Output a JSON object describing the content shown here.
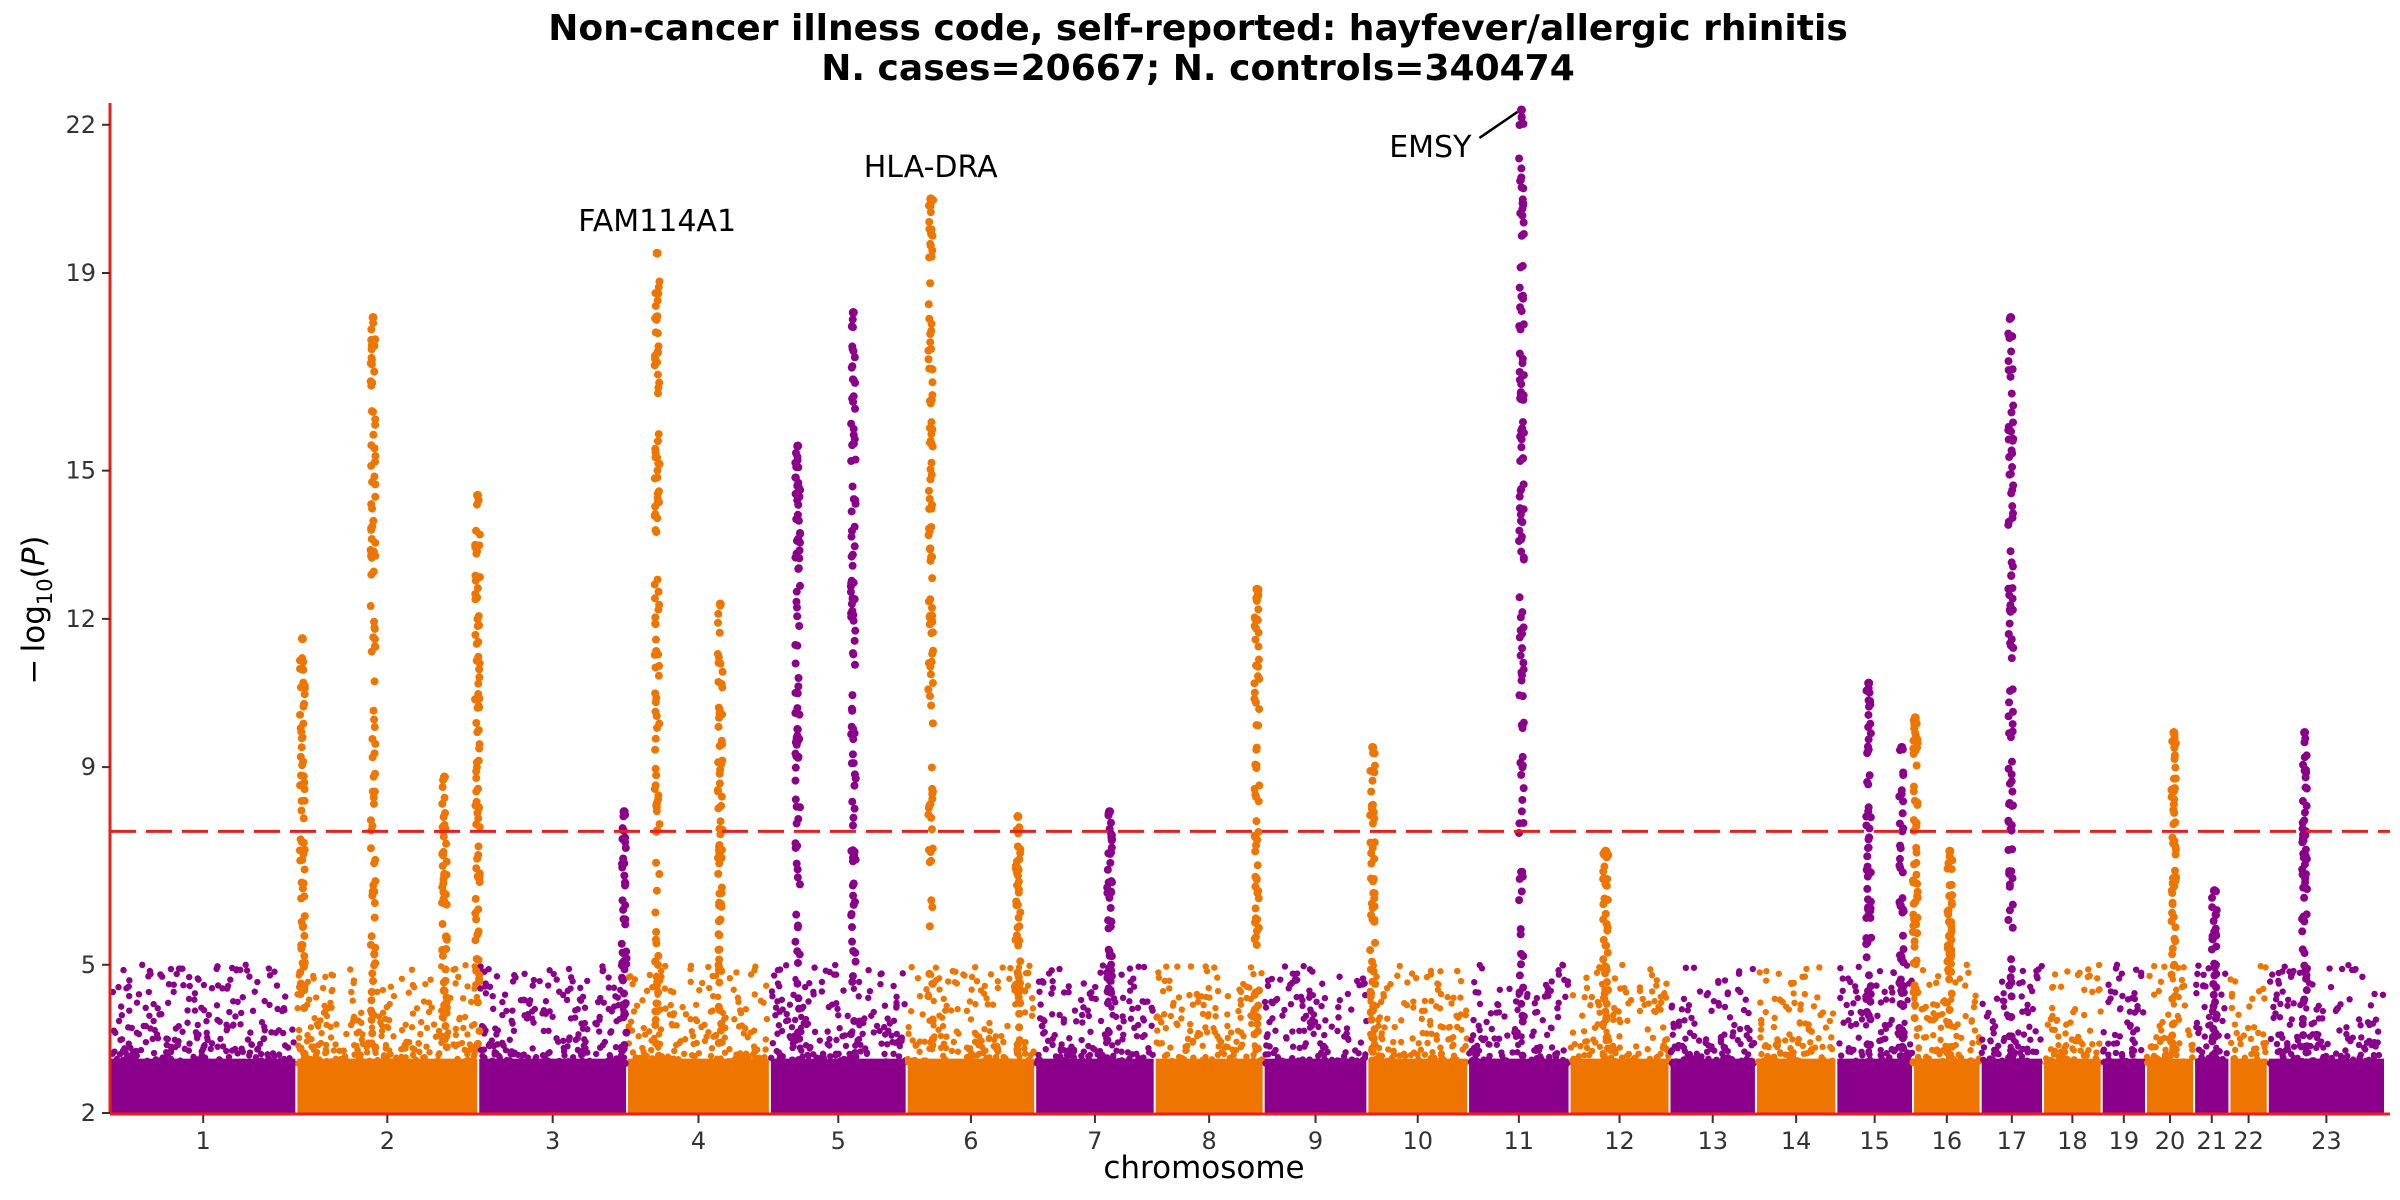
{
  "chart_data": {
    "type": "scatter",
    "subtype": "manhattan",
    "title": "Non-cancer illness code, self-reported: hayfever/allergic rhinitis",
    "subtitle": "N. cases=20667; N. controls=340474",
    "xlabel": "chromosome",
    "ylabel": "− log10(P)",
    "ylim": [
      2,
      22.4
    ],
    "yticks": [
      2,
      5,
      9,
      12,
      15,
      19,
      22
    ],
    "threshold": 7.7,
    "colors": {
      "odd": "#8b008b",
      "even": "#ee7600",
      "threshold": "#e8201c",
      "axis": "#e8201c"
    },
    "chromosomes": [
      {
        "label": "1",
        "start": 0,
        "end": 248
      },
      {
        "label": "2",
        "start": 248,
        "end": 490
      },
      {
        "label": "3",
        "start": 490,
        "end": 688
      },
      {
        "label": "4",
        "start": 688,
        "end": 878
      },
      {
        "label": "5",
        "start": 878,
        "end": 1060
      },
      {
        "label": "6",
        "start": 1060,
        "end": 1231
      },
      {
        "label": "7",
        "start": 1231,
        "end": 1390
      },
      {
        "label": "8",
        "start": 1390,
        "end": 1535
      },
      {
        "label": "9",
        "start": 1535,
        "end": 1673
      },
      {
        "label": "10",
        "start": 1673,
        "end": 1807
      },
      {
        "label": "11",
        "start": 1807,
        "end": 1942
      },
      {
        "label": "12",
        "start": 1942,
        "end": 2075
      },
      {
        "label": "13",
        "start": 2075,
        "end": 2190
      },
      {
        "label": "14",
        "start": 2190,
        "end": 2297
      },
      {
        "label": "15",
        "start": 2297,
        "end": 2399
      },
      {
        "label": "16",
        "start": 2399,
        "end": 2489
      },
      {
        "label": "17",
        "start": 2489,
        "end": 2572
      },
      {
        "label": "18",
        "start": 2572,
        "end": 2650
      },
      {
        "label": "19",
        "start": 2650,
        "end": 2709
      },
      {
        "label": "20",
        "start": 2709,
        "end": 2773
      },
      {
        "label": "21",
        "start": 2773,
        "end": 2820
      },
      {
        "label": "22",
        "start": 2820,
        "end": 2871
      },
      {
        "label": "23",
        "start": 2871,
        "end": 3027
      }
    ],
    "peaks": [
      {
        "chr": "2",
        "pos": 350,
        "max": 18.1
      },
      {
        "chr": "2",
        "pos": 256,
        "max": 11.6
      },
      {
        "chr": "2",
        "pos": 445,
        "max": 8.8
      },
      {
        "chr": "2",
        "pos": 489,
        "max": 14.5
      },
      {
        "chr": "3",
        "pos": 684,
        "max": 8.1
      },
      {
        "chr": "4",
        "pos": 728,
        "max": 19.4
      },
      {
        "chr": "4",
        "pos": 812,
        "max": 12.3
      },
      {
        "chr": "5",
        "pos": 915,
        "max": 15.5
      },
      {
        "chr": "5",
        "pos": 989,
        "max": 18.2
      },
      {
        "chr": "6",
        "pos": 1092,
        "max": 20.5
      },
      {
        "chr": "6",
        "pos": 1208,
        "max": 8.0
      },
      {
        "chr": "7",
        "pos": 1330,
        "max": 8.1
      },
      {
        "chr": "8",
        "pos": 1526,
        "max": 12.6
      },
      {
        "chr": "10",
        "pos": 1680,
        "max": 9.4
      },
      {
        "chr": "11",
        "pos": 1878,
        "max": 22.3
      },
      {
        "chr": "12",
        "pos": 1990,
        "max": 7.3
      },
      {
        "chr": "15",
        "pos": 2340,
        "max": 10.7
      },
      {
        "chr": "15",
        "pos": 2384,
        "max": 9.4
      },
      {
        "chr": "16",
        "pos": 2402,
        "max": 10.0
      },
      {
        "chr": "16",
        "pos": 2448,
        "max": 7.3
      },
      {
        "chr": "17",
        "pos": 2529,
        "max": 18.1
      },
      {
        "chr": "20",
        "pos": 2746,
        "max": 9.7
      },
      {
        "chr": "21",
        "pos": 2800,
        "max": 6.5
      },
      {
        "chr": "23",
        "pos": 2920,
        "max": 9.7
      }
    ],
    "annotations": [
      {
        "text": "FAM114A1",
        "chr": "4"
      },
      {
        "text": "HLA-DRA",
        "chr": "6"
      },
      {
        "text": "EMSY",
        "chr": "11"
      }
    ]
  }
}
